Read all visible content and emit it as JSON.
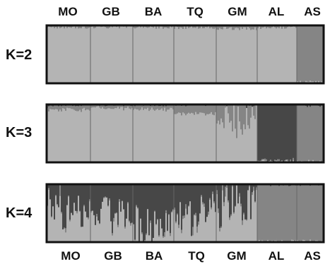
{
  "populations": [
    "MO",
    "GB",
    "BA",
    "TQ",
    "GM",
    "AL",
    "AS"
  ],
  "colors": {
    "cluster_light": "#b4b4b4",
    "cluster_mid": "#858585",
    "cluster_dark": "#474747",
    "frame": "#111111",
    "divider": "#666666"
  },
  "chart_data": {
    "type": "bar",
    "subtype": "stacked-admixture",
    "categories": [
      "MO",
      "GB",
      "BA",
      "TQ",
      "GM",
      "AL",
      "AS"
    ],
    "ylim": [
      0,
      1
    ],
    "panels": [
      {
        "label": "K=2",
        "clusters": 2,
        "population_mean_membership": [
          [
            0.97,
            0.03
          ],
          [
            0.98,
            0.02
          ],
          [
            0.97,
            0.03
          ],
          [
            0.97,
            0.03
          ],
          [
            0.95,
            0.05
          ],
          [
            0.97,
            0.03
          ],
          [
            0.02,
            0.98
          ]
        ]
      },
      {
        "label": "K=3",
        "clusters": 3,
        "population_mean_membership": [
          [
            0.92,
            0.08,
            0.0
          ],
          [
            0.95,
            0.05,
            0.0
          ],
          [
            0.93,
            0.07,
            0.0
          ],
          [
            0.85,
            0.15,
            0.0
          ],
          [
            0.78,
            0.22,
            0.0
          ],
          [
            0.02,
            0.02,
            0.96
          ],
          [
            0.02,
            0.97,
            0.01
          ]
        ]
      },
      {
        "label": "K=4",
        "clusters": 4,
        "population_mean_membership": [
          [
            0.55,
            0.0,
            0.0,
            0.45
          ],
          [
            0.5,
            0.0,
            0.0,
            0.5
          ],
          [
            0.35,
            0.0,
            0.0,
            0.65
          ],
          [
            0.45,
            0.02,
            0.0,
            0.53
          ],
          [
            0.6,
            0.03,
            0.0,
            0.37
          ],
          [
            0.02,
            0.01,
            0.97,
            0.0
          ],
          [
            0.02,
            0.97,
            0.01,
            0.0
          ]
        ]
      }
    ]
  }
}
